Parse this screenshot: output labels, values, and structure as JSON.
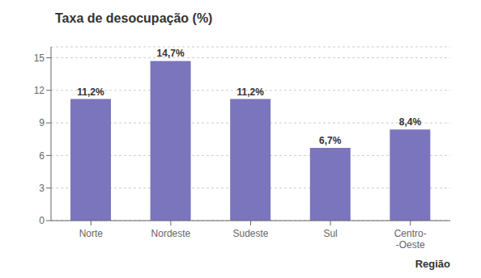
{
  "chart_data": {
    "type": "bar",
    "title": "Taxa de desocupação (%)",
    "xlabel": "Região",
    "categories": [
      "Norte",
      "Nordeste",
      "Sudeste",
      "Sul",
      "Centro-\n-Oeste"
    ],
    "values": [
      11.2,
      14.7,
      11.2,
      6.7,
      8.4
    ],
    "value_labels": [
      "11,2%",
      "14,7%",
      "11,2%",
      "6,7%",
      "8,4%"
    ],
    "color": "#7b75be",
    "ylim": [
      0,
      16
    ],
    "yticks": [
      0,
      3,
      6,
      9,
      12,
      15
    ],
    "grid": true,
    "data_labels": true
  }
}
